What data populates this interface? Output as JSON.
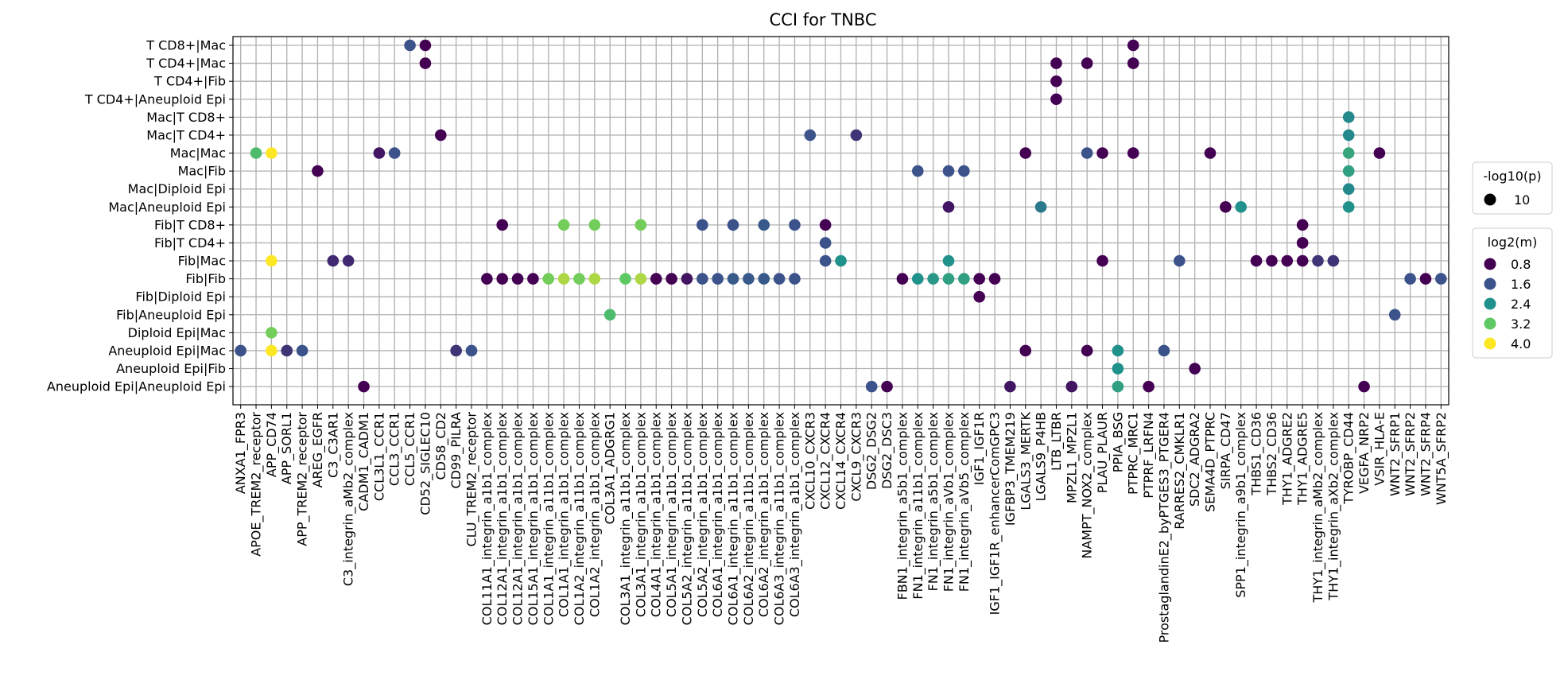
{
  "chart_data": {
    "type": "scatter",
    "title": "CCI for TNBC",
    "xlabel": "",
    "ylabel": "",
    "grid": true,
    "legend_placement": "right",
    "rows": [
      "T CD8+|Mac",
      "T CD4+|Mac",
      "T CD4+|Fib",
      "T CD4+|Aneuploid Epi",
      "Mac|T CD8+",
      "Mac|T CD4+",
      "Mac|Mac",
      "Mac|Fib",
      "Mac|Diploid Epi",
      "Mac|Aneuploid Epi",
      "Fib|T CD8+",
      "Fib|T CD4+",
      "Fib|Mac",
      "Fib|Fib",
      "Fib|Diploid Epi",
      "Fib|Aneuploid Epi",
      "Diploid Epi|Mac",
      "Aneuploid Epi|Mac",
      "Aneuploid Epi|Fib",
      "Aneuploid Epi|Aneuploid Epi"
    ],
    "columns": [
      "ANXA1_FPR3",
      "APOE_TREM2_receptor",
      "APP_CD74",
      "APP_SORL1",
      "APP_TREM2_receptor",
      "AREG_EGFR",
      "C3_C3AR1",
      "C3_integrin_aMb2_complex",
      "CADM1_CADM1",
      "CCL3L1_CCR1",
      "CCL3_CCR1",
      "CCL5_CCR1",
      "CD52_SIGLEC10",
      "CD58_CD2",
      "CD99_PILRA",
      "CLU_TREM2_receptor",
      "COL11A1_integrin_a1b1_complex",
      "COL12A1_integrin_a1b1_complex",
      "COL12A1_integrin_a1b1_complex",
      "COL15A1_integrin_a1b1_complex",
      "COL1A1_integrin_a11b1_complex",
      "COL1A1_integrin_a1b1_complex",
      "COL1A2_integrin_a11b1_complex",
      "COL1A2_integrin_a1b1_complex",
      "COL3A1_ADGRG1",
      "COL3A1_integrin_a11b1_complex",
      "COL3A1_integrin_a1b1_complex",
      "COL4A1_integrin_a1b1_complex",
      "COL5A1_integrin_a1b1_complex",
      "COL5A2_integrin_a11b1_complex",
      "COL5A2_integrin_a1b1_complex",
      "COL6A1_integrin_a1b1_complex",
      "COL6A1_integrin_a11b1_complex",
      "COL6A2_integrin_a11b1_complex",
      "COL6A2_integrin_a1b1_complex",
      "COL6A3_integrin_a11b1_complex",
      "COL6A3_integrin_a1b1_complex",
      "CXCL10_CXCR3",
      "CXCL12_CXCR4",
      "CXCL14_CXCR4",
      "CXCL9_CXCR3",
      "DSG2_DSG2",
      "DSG2_DSC3",
      "FBN1_integrin_a5b1_complex",
      "FN1_integrin_a11b1_complex",
      "FN1_integrin_a5b1_complex",
      "FN1_integrin_aVb1_complex",
      "FN1_integrin_aVb5_complex",
      "IGF1_IGF1R",
      "IGF1_IGF1R_enhancerComGPC3",
      "IGFBP3_TMEM219",
      "LGALS3_MERTK",
      "LGALS9_P4HB",
      "LTB_LTBR",
      "MPZL1_MPZL1",
      "NAMPT_NOX2_complex",
      "PLAU_PLAUR",
      "PPIA_BSG",
      "PTPRC_MRC1",
      "PTPRF_LRFN4",
      "ProstaglandinE2_byPTGES3_PTGER4",
      "RARRES2_CMKLR1",
      "SDC2_ADGRA2",
      "SEMA4D_PTPRC",
      "SIRPA_CD47",
      "SPP1_integrin_a9b1_complex",
      "THBS1_CD36",
      "THBS2_CD36",
      "THY1_ADGRE2",
      "THY1_ADGRE5",
      "THY1_integrin_aMb2_complex",
      "THY1_integrin_aXb2_complex",
      "TYROBP_CD44",
      "VEGFA_NRP2",
      "VSIR_HLA-E",
      "WNT2_SFRP1",
      "WNT2_SFRP2",
      "WNT2_SFRP4",
      "WNT5A_SFRP2"
    ],
    "points_note_fields": [
      "column",
      "row",
      "log2m"
    ],
    "points": [
      [
        "ANXA1_FPR3",
        "Aneuploid Epi|Mac",
        1.6
      ],
      [
        "APOE_TREM2_receptor",
        "Mac|Mac",
        3.0
      ],
      [
        "APP_CD74",
        "Mac|Mac",
        4.2
      ],
      [
        "APP_CD74",
        "Fib|Mac",
        4.2
      ],
      [
        "APP_CD74",
        "Diploid Epi|Mac",
        3.3
      ],
      [
        "APP_CD74",
        "Aneuploid Epi|Mac",
        4.0
      ],
      [
        "APP_SORL1",
        "Aneuploid Epi|Mac",
        1.3
      ],
      [
        "APP_TREM2_receptor",
        "Aneuploid Epi|Mac",
        1.6
      ],
      [
        "AREG_EGFR",
        "Mac|Fib",
        0.8
      ],
      [
        "C3_C3AR1",
        "Fib|Mac",
        1.2
      ],
      [
        "C3_integrin_aMb2_complex",
        "Fib|Mac",
        1.2
      ],
      [
        "CADM1_CADM1",
        "Aneuploid Epi|Aneuploid Epi",
        0.8
      ],
      [
        "CCL3L1_CCR1",
        "Mac|Mac",
        1.0
      ],
      [
        "CCL3_CCR1",
        "Mac|Mac",
        1.6
      ],
      [
        "CCL5_CCR1",
        "T CD8+|Mac",
        1.6
      ],
      [
        "CD52_SIGLEC10",
        "T CD8+|Mac",
        0.8
      ],
      [
        "CD52_SIGLEC10",
        "T CD4+|Mac",
        0.8
      ],
      [
        "CD58_CD2",
        "Mac|T CD4+",
        0.8
      ],
      [
        "CD99_PILRA",
        "Aneuploid Epi|Mac",
        1.3
      ],
      [
        "CLU_TREM2_receptor",
        "Aneuploid Epi|Mac",
        1.6
      ],
      [
        "COL11A1_integrin_a1b1_complex",
        "Fib|Fib",
        0.8
      ],
      [
        "COL12A1_integrin_a1b1_complex",
        "Fib|Fib",
        0.8
      ],
      [
        "COL12A1_integrin_a1b1_complex",
        "Fib|T CD8+",
        0.8
      ],
      [
        "COL12A1_integrin_a1b1_complex",
        "Fib|Fib",
        0.8
      ],
      [
        "COL15A1_integrin_a1b1_complex",
        "Fib|Fib",
        0.8
      ],
      [
        "COL1A1_integrin_a11b1_complex",
        "Fib|Fib",
        3.3
      ],
      [
        "COL1A1_integrin_a1b1_complex",
        "Fib|T CD8+",
        3.3
      ],
      [
        "COL1A1_integrin_a1b1_complex",
        "Fib|Fib",
        3.6
      ],
      [
        "COL1A2_integrin_a11b1_complex",
        "Fib|Fib",
        3.3
      ],
      [
        "COL1A2_integrin_a1b1_complex",
        "Fib|T CD8+",
        3.3
      ],
      [
        "COL1A2_integrin_a1b1_complex",
        "Fib|Fib",
        3.6
      ],
      [
        "COL3A1_ADGRG1",
        "Fib|Aneuploid Epi",
        3.0
      ],
      [
        "COL3A1_integrin_a11b1_complex",
        "Fib|Fib",
        3.2
      ],
      [
        "COL3A1_integrin_a1b1_complex",
        "Fib|T CD8+",
        3.3
      ],
      [
        "COL3A1_integrin_a1b1_complex",
        "Fib|Fib",
        3.6
      ],
      [
        "COL4A1_integrin_a1b1_complex",
        "Fib|Fib",
        0.8
      ],
      [
        "COL5A1_integrin_a1b1_complex",
        "Fib|Fib",
        0.8
      ],
      [
        "COL5A2_integrin_a11b1_complex",
        "Fib|Fib",
        1.0
      ],
      [
        "COL5A2_integrin_a1b1_complex",
        "Fib|T CD8+",
        1.6
      ],
      [
        "COL5A2_integrin_a1b1_complex",
        "Fib|Fib",
        1.6
      ],
      [
        "COL6A1_integrin_a1b1_complex",
        "Fib|Fib",
        1.6
      ],
      [
        "COL6A1_integrin_a11b1_complex",
        "Fib|T CD8+",
        1.6
      ],
      [
        "COL6A1_integrin_a11b1_complex",
        "Fib|Fib",
        1.7
      ],
      [
        "COL6A2_integrin_a11b1_complex",
        "Fib|Fib",
        1.7
      ],
      [
        "COL6A2_integrin_a1b1_complex",
        "Fib|T CD8+",
        1.7
      ],
      [
        "COL6A2_integrin_a1b1_complex",
        "Fib|Fib",
        1.7
      ],
      [
        "COL6A3_integrin_a11b1_complex",
        "Fib|Fib",
        1.6
      ],
      [
        "COL6A3_integrin_a1b1_complex",
        "Fib|T CD8+",
        1.6
      ],
      [
        "COL6A3_integrin_a1b1_complex",
        "Fib|Fib",
        1.6
      ],
      [
        "CXCL10_CXCR3",
        "Mac|T CD4+",
        1.6
      ],
      [
        "CXCL12_CXCR4",
        "Fib|T CD8+",
        0.8
      ],
      [
        "CXCL12_CXCR4",
        "Fib|T CD4+",
        1.6
      ],
      [
        "CXCL12_CXCR4",
        "Fib|Mac",
        1.6
      ],
      [
        "CXCL14_CXCR4",
        "Fib|Mac",
        2.4
      ],
      [
        "CXCL9_CXCR3",
        "Mac|T CD4+",
        1.3
      ],
      [
        "DSG2_DSG2",
        "Aneuploid Epi|Aneuploid Epi",
        1.6
      ],
      [
        "DSG2_DSC3",
        "Aneuploid Epi|Aneuploid Epi",
        0.8
      ],
      [
        "FBN1_integrin_a5b1_complex",
        "Fib|Fib",
        0.8
      ],
      [
        "FN1_integrin_a11b1_complex",
        "Mac|Fib",
        1.6
      ],
      [
        "FN1_integrin_a11b1_complex",
        "Fib|Fib",
        2.4
      ],
      [
        "FN1_integrin_a5b1_complex",
        "Fib|Fib",
        2.5
      ],
      [
        "FN1_integrin_aVb1_complex",
        "Mac|Fib",
        1.6
      ],
      [
        "FN1_integrin_aVb1_complex",
        "Mac|Aneuploid Epi",
        1.0
      ],
      [
        "FN1_integrin_aVb1_complex",
        "Fib|Mac",
        2.4
      ],
      [
        "FN1_integrin_aVb1_complex",
        "Fib|Fib",
        2.6
      ],
      [
        "FN1_integrin_aVb5_complex",
        "Mac|Fib",
        1.6
      ],
      [
        "FN1_integrin_aVb5_complex",
        "Fib|Fib",
        2.6
      ],
      [
        "IGF1_IGF1R",
        "Fib|Fib",
        0.8
      ],
      [
        "IGF1_IGF1R",
        "Fib|Diploid Epi",
        0.8
      ],
      [
        "IGF1_IGF1R_enhancerComGPC3",
        "Fib|Fib",
        0.8
      ],
      [
        "IGFBP3_TMEM219",
        "Aneuploid Epi|Aneuploid Epi",
        1.0
      ],
      [
        "LGALS3_MERTK",
        "Mac|Mac",
        0.8
      ],
      [
        "LGALS3_MERTK",
        "Aneuploid Epi|Mac",
        0.8
      ],
      [
        "LGALS9_P4HB",
        "Mac|Aneuploid Epi",
        2.1
      ],
      [
        "LTB_LTBR",
        "T CD4+|Mac",
        0.8
      ],
      [
        "LTB_LTBR",
        "T CD4+|Fib",
        0.8
      ],
      [
        "LTB_LTBR",
        "T CD4+|Aneuploid Epi",
        0.8
      ],
      [
        "MPZL1_MPZL1",
        "Aneuploid Epi|Aneuploid Epi",
        1.0
      ],
      [
        "NAMPT_NOX2_complex",
        "T CD4+|Mac",
        0.8
      ],
      [
        "NAMPT_NOX2_complex",
        "Mac|Mac",
        1.6
      ],
      [
        "NAMPT_NOX2_complex",
        "Aneuploid Epi|Mac",
        0.8
      ],
      [
        "PLAU_PLAUR",
        "Mac|Mac",
        0.8
      ],
      [
        "PLAU_PLAUR",
        "Fib|Mac",
        0.8
      ],
      [
        "PPIA_BSG",
        "Aneuploid Epi|Mac",
        2.4
      ],
      [
        "PPIA_BSG",
        "Aneuploid Epi|Fib",
        2.4
      ],
      [
        "PPIA_BSG",
        "Aneuploid Epi|Aneuploid Epi",
        2.6
      ],
      [
        "PTPRC_MRC1",
        "T CD8+|Mac",
        0.8
      ],
      [
        "PTPRC_MRC1",
        "T CD4+|Mac",
        0.8
      ],
      [
        "PTPRC_MRC1",
        "Mac|Mac",
        0.8
      ],
      [
        "PTPRF_LRFN4",
        "Aneuploid Epi|Aneuploid Epi",
        0.8
      ],
      [
        "ProstaglandinE2_byPTGES3_PTGER4",
        "Aneuploid Epi|Mac",
        1.6
      ],
      [
        "RARRES2_CMKLR1",
        "Fib|Mac",
        1.6
      ],
      [
        "SDC2_ADGRA2",
        "Aneuploid Epi|Fib",
        0.8
      ],
      [
        "SEMA4D_PTPRC",
        "Mac|Mac",
        0.8
      ],
      [
        "SIRPA_CD47",
        "Mac|Aneuploid Epi",
        0.8
      ],
      [
        "SPP1_integrin_a9b1_complex",
        "Mac|Aneuploid Epi",
        2.4
      ],
      [
        "THBS1_CD36",
        "Fib|Mac",
        0.8
      ],
      [
        "THBS2_CD36",
        "Fib|Mac",
        0.8
      ],
      [
        "THY1_ADGRE2",
        "Fib|Mac",
        0.8
      ],
      [
        "THY1_ADGRE5",
        "Fib|T CD8+",
        0.8
      ],
      [
        "THY1_ADGRE5",
        "Fib|T CD4+",
        0.8
      ],
      [
        "THY1_ADGRE5",
        "Fib|Mac",
        0.8
      ],
      [
        "THY1_integrin_aMb2_complex",
        "Fib|Mac",
        1.3
      ],
      [
        "THY1_integrin_aXb2_complex",
        "Fib|Mac",
        1.3
      ],
      [
        "TYROBP_CD44",
        "Mac|T CD8+",
        2.3
      ],
      [
        "TYROBP_CD44",
        "Mac|T CD4+",
        2.3
      ],
      [
        "TYROBP_CD44",
        "Mac|Mac",
        2.7
      ],
      [
        "TYROBP_CD44",
        "Mac|Fib",
        2.6
      ],
      [
        "TYROBP_CD44",
        "Mac|Diploid Epi",
        2.3
      ],
      [
        "TYROBP_CD44",
        "Mac|Aneuploid Epi",
        2.4
      ],
      [
        "VEGFA_NRP2",
        "Aneuploid Epi|Aneuploid Epi",
        0.8
      ],
      [
        "VSIR_HLA-E",
        "Mac|Mac",
        0.8
      ],
      [
        "WNT2_SFRP1",
        "Fib|Aneuploid Epi",
        1.6
      ],
      [
        "WNT2_SFRP2",
        "Fib|Fib",
        1.6
      ],
      [
        "WNT2_SFRP4",
        "Fib|Fib",
        0.8
      ],
      [
        "WNT5A_SFRP2",
        "Fib|Fib",
        1.6
      ]
    ],
    "size_legend": {
      "title": "-log10(p)",
      "entries": [
        {
          "label": "10",
          "value": 10
        }
      ]
    },
    "color_legend": {
      "title": "log2(m)",
      "colormap": "viridis",
      "range": [
        0.8,
        4.0
      ],
      "entries": [
        {
          "label": "0.8",
          "value": 0.8,
          "color": "#440154"
        },
        {
          "label": "1.6",
          "value": 1.6,
          "color": "#3b528b"
        },
        {
          "label": "2.4",
          "value": 2.4,
          "color": "#21918c"
        },
        {
          "label": "3.2",
          "value": 3.2,
          "color": "#5ec962"
        },
        {
          "label": "4.0",
          "value": 4.0,
          "color": "#fde725"
        }
      ]
    }
  }
}
